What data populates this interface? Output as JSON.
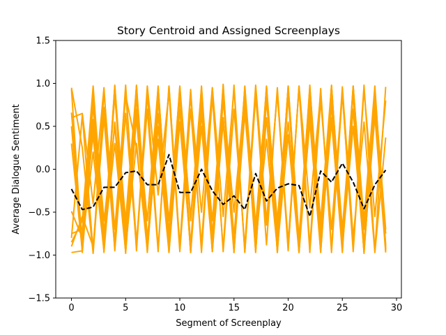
{
  "chart_data": {
    "type": "line",
    "title": "Story Centroid and Assigned Screenplays",
    "xlabel": "Segment of Screenplay",
    "ylabel": "Average Dialogue Sentiment",
    "xlim": [
      -1.45,
      30.45
    ],
    "ylim": [
      -1.5,
      1.5
    ],
    "xticks": [
      0,
      5,
      10,
      15,
      20,
      25,
      30
    ],
    "xtick_labels": [
      "0",
      "5",
      "10",
      "15",
      "20",
      "25",
      "30"
    ],
    "yticks": [
      -1.5,
      -1.0,
      -0.5,
      0.0,
      0.5,
      1.0,
      1.5
    ],
    "ytick_labels": [
      "−1.5",
      "−1.0",
      "−0.5",
      "0.0",
      "0.5",
      "1.0",
      "1.5"
    ],
    "grid": false,
    "colors": {
      "screenplay": "#FFA500",
      "centroid": "#000000"
    },
    "x": [
      0,
      1,
      2,
      3,
      4,
      5,
      6,
      7,
      8,
      9,
      10,
      11,
      12,
      13,
      14,
      15,
      16,
      17,
      18,
      19,
      20,
      21,
      22,
      23,
      24,
      25,
      26,
      27,
      28,
      29
    ],
    "centroid": {
      "style": "dashed",
      "values": [
        -0.23,
        -0.47,
        -0.44,
        -0.21,
        -0.21,
        -0.04,
        -0.02,
        -0.18,
        -0.18,
        0.17,
        -0.27,
        -0.27,
        0.0,
        -0.25,
        -0.41,
        -0.31,
        -0.47,
        -0.05,
        -0.37,
        -0.22,
        -0.17,
        -0.19,
        -0.55,
        -0.02,
        -0.15,
        0.07,
        -0.15,
        -0.46,
        -0.18,
        -0.01
      ]
    },
    "series": [
      {
        "values": [
          0.95,
          0.25,
          -0.98,
          0.72,
          -0.85,
          0.98,
          -0.95,
          0.88,
          -0.92,
          0.97,
          -0.9,
          0.93,
          -0.97,
          0.85,
          -0.93,
          0.98,
          -0.96,
          0.9,
          -0.88,
          0.95,
          -0.93,
          0.97,
          -0.9,
          0.94,
          -0.97,
          0.88,
          -0.92,
          0.98,
          -0.95,
          0.96
        ]
      },
      {
        "values": [
          -0.8,
          0.63,
          -0.95,
          0.9,
          -0.7,
          0.86,
          0.25,
          -0.9,
          0.95,
          -0.8,
          0.9,
          -0.97,
          0.65,
          -0.88,
          0.99,
          -0.92,
          0.75,
          -0.97,
          0.88,
          -0.83,
          0.96,
          -0.9,
          0.7,
          -0.95,
          0.9,
          -0.8,
          0.97,
          -0.93,
          0.62,
          -0.97
        ]
      },
      {
        "values": [
          -0.49,
          -0.8,
          0.93,
          -0.9,
          0.98,
          -0.96,
          0.85,
          -0.92,
          0.97,
          -0.88,
          0.95,
          -0.97,
          0.92,
          -0.9,
          0.97,
          -0.95,
          0.88,
          -0.93,
          0.95,
          -0.97,
          0.9,
          -0.91,
          0.98,
          -0.96,
          0.87,
          -0.94,
          0.96,
          -0.88,
          0.93,
          -0.92
        ]
      },
      {
        "values": [
          0.66,
          -0.85,
          0.2,
          -0.95,
          0.97,
          -0.7,
          0.9,
          -0.95,
          0.8,
          -0.6,
          0.93,
          -0.88,
          0.5,
          -0.95,
          0.88,
          -0.8,
          0.95,
          -0.92,
          0.6,
          -0.9,
          0.97,
          -0.85,
          0.75,
          -0.93,
          0.98,
          -0.9,
          0.5,
          -0.95,
          0.9,
          -0.88
        ]
      },
      {
        "values": [
          0.3,
          -0.95,
          0.85,
          -0.6,
          0.5,
          -0.93,
          0.98,
          -0.8,
          0.35,
          -0.97,
          0.9,
          -0.55,
          0.85,
          -0.96,
          0.6,
          -0.85,
          0.92,
          -0.7,
          0.95,
          -0.93,
          0.4,
          -0.97,
          0.85,
          -0.6,
          0.97,
          -0.88,
          0.7,
          -0.96,
          0.88,
          -0.7
        ]
      },
      {
        "values": [
          -0.97,
          -0.95,
          0.58,
          -0.88,
          0.3,
          -0.96,
          0.6,
          -0.93,
          0.92,
          -0.75,
          0.7,
          -0.95,
          0.9,
          -0.93,
          0.55,
          -0.97,
          0.96,
          -0.65,
          0.85,
          -0.9,
          0.93,
          -0.97,
          0.6,
          -0.8,
          0.97,
          -0.93,
          0.9,
          -0.98,
          0.8,
          -0.9
        ]
      },
      {
        "values": [
          0.6,
          0.65,
          -0.4,
          0.95,
          -0.95,
          0.65,
          -0.9,
          0.97,
          -0.3,
          0.9,
          -0.96,
          0.7,
          -0.88,
          0.95,
          -0.55,
          0.93,
          -0.97,
          0.85,
          -0.65,
          0.9,
          -0.95,
          0.97,
          -0.45,
          0.88,
          -0.92,
          0.96,
          -0.8,
          0.55,
          -0.97,
          0.37
        ]
      },
      {
        "values": [
          0.93,
          -0.97,
          0.5,
          -0.85,
          0.96,
          -0.9,
          0.3,
          -0.95,
          0.9,
          -0.75,
          0.97,
          -0.6,
          0.95,
          -0.96,
          0.8,
          -0.5,
          0.88,
          -0.95,
          0.97,
          -0.7,
          0.55,
          -0.93,
          0.9,
          -0.97,
          0.75,
          -0.85,
          0.95,
          -0.6,
          0.97,
          -0.93
        ]
      },
      {
        "values": [
          -0.85,
          -0.6,
          0.97,
          -0.75,
          0.85,
          -0.6,
          0.97,
          -0.93,
          0.5,
          -0.88,
          0.96,
          -0.95,
          0.75,
          -0.6,
          0.93,
          -0.97,
          0.9,
          -0.85,
          0.35,
          -0.93,
          0.97,
          -0.8,
          0.95,
          -0.7,
          0.6,
          -0.97,
          0.92,
          -0.9,
          0.7,
          -0.75
        ]
      },
      {
        "values": [
          -0.9,
          -0.55,
          -0.9,
          0.6,
          -0.93,
          0.9,
          -0.85,
          0.7,
          -0.96,
          0.97,
          -0.92,
          0.85,
          -0.5,
          0.95,
          -0.96,
          0.7,
          -0.9,
          0.98,
          -0.6,
          0.88,
          -0.85,
          0.95,
          -0.97,
          0.8,
          -0.7,
          0.9,
          -0.96,
          0.93,
          -0.55,
          0.8
        ]
      },
      {
        "values": [
          0.5,
          -0.9,
          0.75,
          -0.97,
          0.55,
          -0.8,
          0.95,
          -0.97,
          0.65,
          -0.92,
          0.85,
          -0.97,
          0.9,
          -0.75,
          0.6,
          -0.93,
          0.97,
          -0.96,
          0.8,
          -0.6,
          0.9,
          -0.97,
          0.95,
          -0.85,
          0.55,
          -0.9,
          0.97,
          -0.7,
          0.85,
          -0.95
        ]
      },
      {
        "values": [
          -0.75,
          -0.7,
          0.4,
          -0.93,
          0.9,
          -0.98,
          0.7,
          -0.6,
          0.96,
          -0.97,
          0.55,
          -0.9,
          0.97,
          -0.85,
          0.9,
          -0.95,
          0.65,
          -0.75,
          0.96,
          -0.97,
          0.85,
          -0.9,
          0.55,
          -0.96,
          0.93,
          -0.7,
          0.88,
          -0.97,
          0.75,
          -0.95
        ]
      }
    ]
  }
}
